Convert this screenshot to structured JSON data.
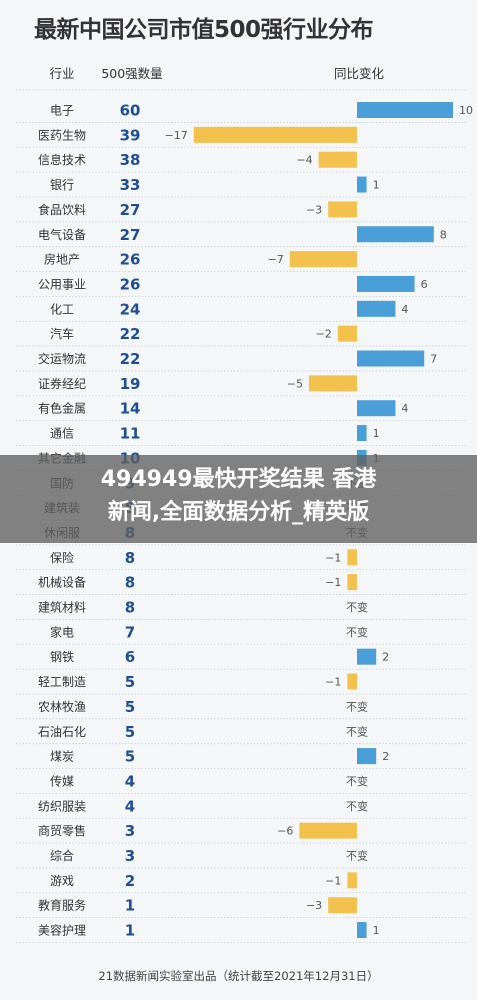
{
  "chart_data": {
    "type": "table",
    "title": "最新中国公司市值500强行业分布",
    "columns": [
      "行业",
      "500强数量",
      "同比变化"
    ],
    "rows": [
      {
        "industry": "电子",
        "count": 60,
        "change": 10
      },
      {
        "industry": "医药生物",
        "count": 39,
        "change": -17
      },
      {
        "industry": "信息技术",
        "count": 38,
        "change": -4
      },
      {
        "industry": "银行",
        "count": 33,
        "change": 1
      },
      {
        "industry": "食品饮料",
        "count": 27,
        "change": -3
      },
      {
        "industry": "电气设备",
        "count": 27,
        "change": 8
      },
      {
        "industry": "房地产",
        "count": 26,
        "change": -7
      },
      {
        "industry": "公用事业",
        "count": 26,
        "change": 6
      },
      {
        "industry": "化工",
        "count": 24,
        "change": 4
      },
      {
        "industry": "汽车",
        "count": 22,
        "change": -2
      },
      {
        "industry": "交运物流",
        "count": 22,
        "change": 7
      },
      {
        "industry": "证券经纪",
        "count": 19,
        "change": -5
      },
      {
        "industry": "有色金属",
        "count": 14,
        "change": 4
      },
      {
        "industry": "通信",
        "count": 11,
        "change": 1
      },
      {
        "industry": "其它金融",
        "count": 10,
        "change": 1
      },
      {
        "industry": "国防",
        "count": 9,
        "change": 0
      },
      {
        "industry": "建筑装",
        "count": 8,
        "change": 0
      },
      {
        "industry": "休闲服",
        "count": 8,
        "change": 0
      },
      {
        "industry": "保险",
        "count": 8,
        "change": -1
      },
      {
        "industry": "机械设备",
        "count": 8,
        "change": -1
      },
      {
        "industry": "建筑材料",
        "count": 8,
        "change": 0
      },
      {
        "industry": "家电",
        "count": 7,
        "change": 0
      },
      {
        "industry": "钢铁",
        "count": 6,
        "change": 2
      },
      {
        "industry": "轻工制造",
        "count": 5,
        "change": -1
      },
      {
        "industry": "农林牧渔",
        "count": 5,
        "change": 0
      },
      {
        "industry": "石油石化",
        "count": 5,
        "change": 0
      },
      {
        "industry": "煤炭",
        "count": 5,
        "change": 2
      },
      {
        "industry": "传媒",
        "count": 4,
        "change": 0
      },
      {
        "industry": "纺织服装",
        "count": 4,
        "change": 0
      },
      {
        "industry": "商贸零售",
        "count": 3,
        "change": -6
      },
      {
        "industry": "综合",
        "count": 3,
        "change": 0
      },
      {
        "industry": "游戏",
        "count": 2,
        "change": -1
      },
      {
        "industry": "教育服务",
        "count": 1,
        "change": -3
      },
      {
        "industry": "美容护理",
        "count": 1,
        "change": 1
      }
    ],
    "no_change_label": "不变",
    "change_range": [
      -17,
      10
    ],
    "colors": {
      "positive": "#4a9fd8",
      "negative": "#f2c14e",
      "count": "#1f4e96"
    }
  },
  "footer": "21数据新闻实验室出品（统计截至2021年12月31日）",
  "overlay": {
    "line1": "494949最快开奖结果 香港",
    "line2": "新闻,全面数据分析_精英版"
  }
}
